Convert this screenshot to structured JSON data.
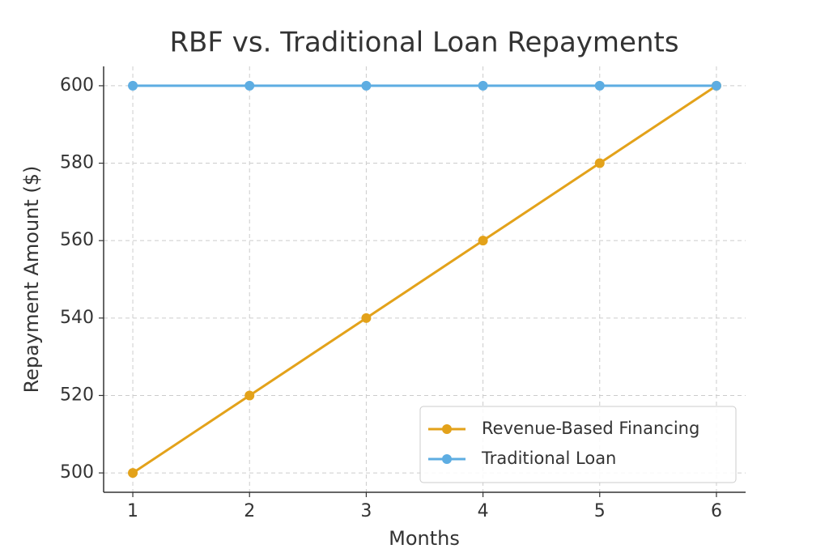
{
  "chart_data": {
    "type": "line",
    "title": "RBF vs. Traditional Loan Repayments",
    "x_label": "Months",
    "y_label": "Repayment Amount ($)",
    "x": [
      1,
      2,
      3,
      4,
      5,
      6
    ],
    "series": [
      {
        "name": "Revenue-Based Financing",
        "color": "#e3a21a",
        "values": [
          500,
          520,
          540,
          560,
          580,
          600
        ]
      },
      {
        "name": "Traditional Loan",
        "color": "#5dade2",
        "values": [
          600,
          600,
          600,
          600,
          600,
          600
        ]
      }
    ],
    "xlim": [
      0.75,
      6.25
    ],
    "xticks": [
      1,
      2,
      3,
      4,
      5,
      6
    ],
    "ylim": [
      495,
      605
    ],
    "yticks": [
      500,
      520,
      540,
      560,
      580,
      600
    ],
    "grid": true,
    "legend": "lower right"
  }
}
